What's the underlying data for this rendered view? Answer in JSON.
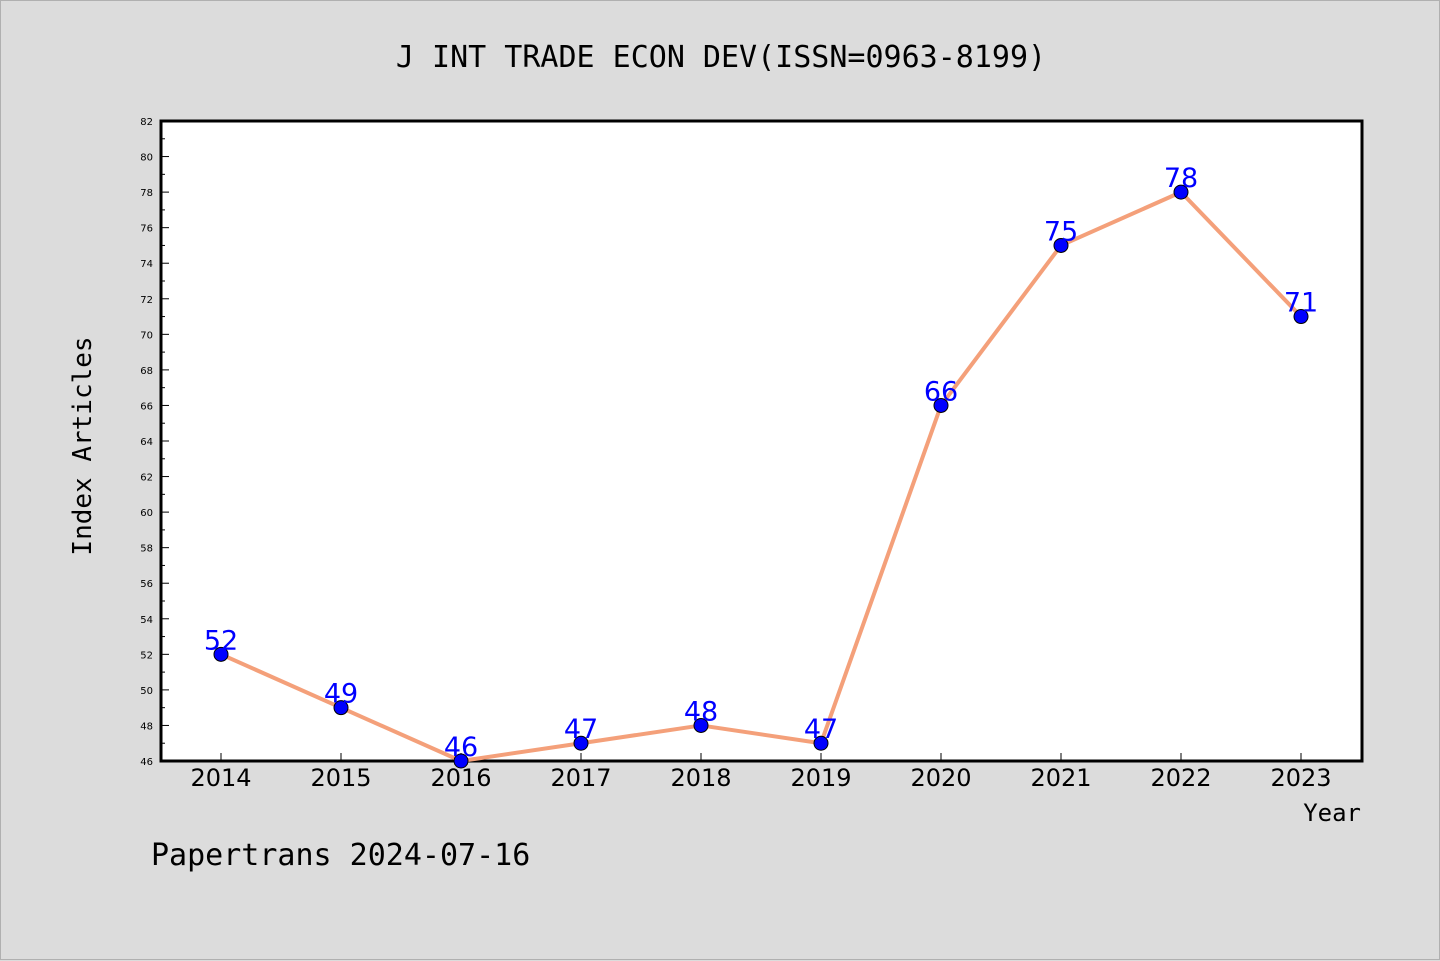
{
  "chart_data": {
    "type": "line",
    "title": "J INT TRADE ECON DEV(ISSN=0963-8199)",
    "xlabel": "Year",
    "ylabel": "Index Articles",
    "categories": [
      "2014",
      "2015",
      "2016",
      "2017",
      "2018",
      "2019",
      "2020",
      "2021",
      "2022",
      "2023"
    ],
    "series": [
      {
        "values": [
          52,
          49,
          46,
          47,
          48,
          47,
          66,
          75,
          78,
          71
        ]
      }
    ],
    "ylim": [
      46,
      82
    ],
    "yticks": [
      46,
      48,
      50,
      52,
      54,
      56,
      58,
      60,
      62,
      64,
      66,
      68,
      70,
      72,
      74,
      76,
      78,
      80,
      82
    ],
    "line_color": "#f4a07a",
    "marker_color": "#0000ff",
    "label_color": "#0000ff",
    "grid": false,
    "legend": "none"
  },
  "footer": {
    "text": "Papertrans 2024-07-16"
  }
}
